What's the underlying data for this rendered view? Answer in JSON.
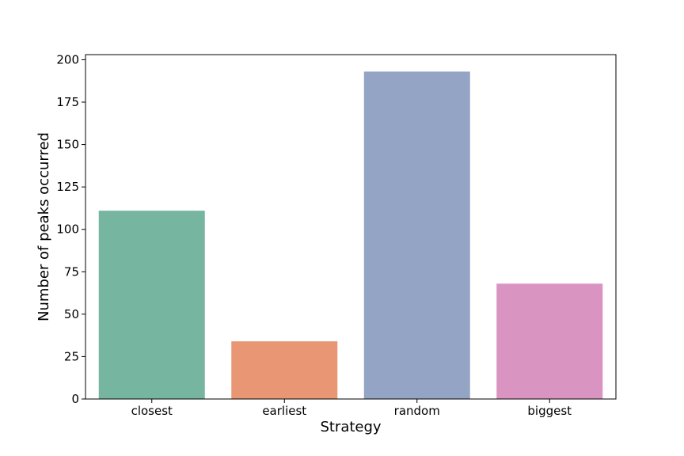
{
  "chart_data": {
    "type": "bar",
    "title": "",
    "xlabel": "Strategy",
    "ylabel": "Number of peaks occurred",
    "categories": [
      "closest",
      "earliest",
      "random",
      "biggest"
    ],
    "values": [
      111,
      34,
      193,
      68
    ],
    "colors": [
      "#76b5a0",
      "#e89673",
      "#93a4c4",
      "#da94c1"
    ],
    "ylim": [
      0,
      203
    ],
    "yticks": [
      0,
      25,
      50,
      75,
      100,
      125,
      150,
      175,
      200
    ],
    "grid": false,
    "legend": "none"
  }
}
